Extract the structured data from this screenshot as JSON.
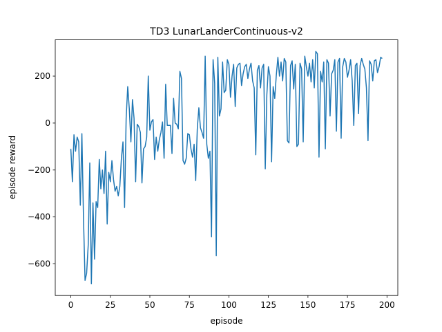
{
  "chart_data": {
    "type": "line",
    "title": "TD3 LunarLanderContinuous-v2",
    "xlabel": "episode",
    "ylabel": "episode reward",
    "x": [
      0,
      1,
      2,
      3,
      4,
      5,
      6,
      7,
      8,
      9,
      10,
      11,
      12,
      13,
      14,
      15,
      16,
      17,
      18,
      19,
      20,
      21,
      22,
      23,
      24,
      25,
      26,
      27,
      28,
      29,
      30,
      31,
      32,
      33,
      34,
      35,
      36,
      37,
      38,
      39,
      40,
      41,
      42,
      43,
      44,
      45,
      46,
      47,
      48,
      49,
      50,
      51,
      52,
      53,
      54,
      55,
      56,
      57,
      58,
      59,
      60,
      61,
      62,
      63,
      64,
      65,
      66,
      67,
      68,
      69,
      70,
      71,
      72,
      73,
      74,
      75,
      76,
      77,
      78,
      79,
      80,
      81,
      82,
      83,
      84,
      85,
      86,
      87,
      88,
      89,
      90,
      91,
      92,
      93,
      94,
      95,
      96,
      97,
      98,
      99,
      100,
      101,
      102,
      103,
      104,
      105,
      106,
      107,
      108,
      109,
      110,
      111,
      112,
      113,
      114,
      115,
      116,
      117,
      118,
      119,
      120,
      121,
      122,
      123,
      124,
      125,
      126,
      127,
      128,
      129,
      130,
      131,
      132,
      133,
      134,
      135,
      136,
      137,
      138,
      139,
      140,
      141,
      142,
      143,
      144,
      145,
      146,
      147,
      148,
      149,
      150,
      151,
      152,
      153,
      154,
      155,
      156,
      157,
      158,
      159,
      160,
      161,
      162,
      163,
      164,
      165,
      166,
      167,
      168,
      169,
      170,
      171,
      172,
      173,
      174,
      175,
      176,
      177,
      178,
      179,
      180,
      181,
      182,
      183,
      184,
      185,
      186,
      187,
      188,
      189,
      190,
      191,
      192,
      193,
      194,
      195,
      196,
      197
    ],
    "series": [
      {
        "color": "#1f77b4",
        "values": [
          -110,
          -250,
          -50,
          -120,
          -60,
          -80,
          -350,
          -45,
          -400,
          -670,
          -640,
          -520,
          -170,
          -685,
          -340,
          -580,
          -335,
          -360,
          -155,
          -280,
          -200,
          -300,
          -120,
          -430,
          -210,
          -250,
          -160,
          -240,
          -290,
          -270,
          -310,
          -270,
          -150,
          -80,
          -360,
          20,
          155,
          60,
          -80,
          100,
          20,
          -250,
          -5,
          -15,
          -40,
          -255,
          -110,
          -100,
          -60,
          200,
          -30,
          5,
          15,
          -155,
          -60,
          -120,
          -70,
          -40,
          5,
          -150,
          165,
          -10,
          -10,
          -10,
          -130,
          105,
          0,
          -5,
          -25,
          220,
          190,
          -160,
          -175,
          -150,
          -45,
          -50,
          -110,
          -145,
          -90,
          -245,
          -25,
          65,
          -20,
          -40,
          -65,
          285,
          -90,
          -150,
          -120,
          -485,
          270,
          170,
          -565,
          280,
          30,
          60,
          260,
          130,
          140,
          270,
          250,
          110,
          200,
          250,
          70,
          235,
          250,
          255,
          160,
          210,
          240,
          250,
          190,
          230,
          255,
          180,
          150,
          -135,
          225,
          245,
          150,
          235,
          250,
          -195,
          120,
          240,
          200,
          -165,
          155,
          105,
          205,
          280,
          200,
          260,
          180,
          275,
          260,
          -75,
          -85,
          245,
          265,
          145,
          250,
          -100,
          -90,
          255,
          230,
          -80,
          285,
          240,
          200,
          255,
          175,
          270,
          150,
          305,
          295,
          -145,
          220,
          175,
          260,
          -110,
          270,
          255,
          30,
          210,
          225,
          270,
          -35,
          260,
          275,
          -65,
          240,
          275,
          260,
          195,
          225,
          270,
          180,
          -10,
          245,
          255,
          40,
          245,
          275,
          250,
          230,
          150,
          -75,
          265,
          250,
          180,
          265,
          270,
          215,
          240,
          280,
          275
        ]
      }
    ],
    "xlim": [
      -9.85,
      206.85
    ],
    "xticks": [
      0,
      25,
      50,
      75,
      100,
      125,
      150,
      175,
      200
    ],
    "ylim": [
      -734.5,
      354.5
    ],
    "yticks": [
      {
        "value": -600,
        "label": "−600"
      },
      {
        "value": -400,
        "label": "−400"
      },
      {
        "value": -200,
        "label": "−200"
      },
      0,
      200
    ]
  }
}
